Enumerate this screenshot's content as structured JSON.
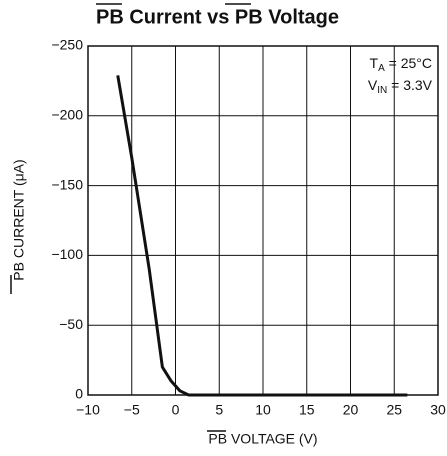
{
  "chart_data": {
    "type": "line",
    "title": "PB Current vs PB Voltage",
    "xlabel": "PB VOLTAGE (V)",
    "ylabel": "PB CURRENT (μA)",
    "annotations": [
      [
        "T",
        "A",
        " = 25°C"
      ],
      [
        "V",
        "IN",
        " = 3.3V"
      ]
    ],
    "x": [
      -6.6,
      -5,
      -3,
      -1.5,
      -0.5,
      0.5,
      1.5,
      26.5
    ],
    "series": [
      {
        "color": "#111111",
        "values": [
          -229,
          -170,
          -90,
          -20,
          -10,
          -3,
          0,
          0
        ]
      }
    ],
    "xlim": [
      -10,
      30
    ],
    "xticks": [
      {
        "value": -10,
        "label": "−10"
      },
      {
        "value": -5,
        "label": "−5"
      },
      0,
      5,
      10,
      15,
      20,
      25,
      30
    ],
    "ylim": [
      0,
      -250
    ],
    "yticks": [
      0,
      {
        "value": -50,
        "label": "−50"
      },
      {
        "value": -100,
        "label": "−100"
      },
      {
        "value": -150,
        "label": "−150"
      },
      {
        "value": -200,
        "label": "−200"
      },
      {
        "value": -250,
        "label": "−250"
      }
    ],
    "grid": true
  }
}
